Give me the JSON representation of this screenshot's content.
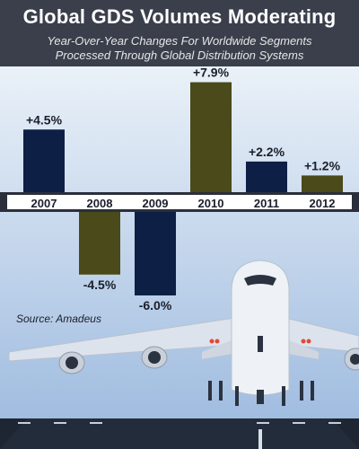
{
  "header": {
    "title": "Global GDS Volumes Moderating",
    "subtitle_line1": "Year-Over-Year Changes For Worldwide Segments",
    "subtitle_line2": "Processed Through Global Distribution Systems"
  },
  "source": "Source: Amadeus",
  "colors": {
    "positive_bar": "#0e1f45",
    "negative_bar": "#0e1f45",
    "highlight_bar": "#4a4a1a",
    "sky_top": "#eaf1f8",
    "sky_bottom": "#9ab8de",
    "axis_band": "#2a2f3b",
    "label_text": "#ffffff"
  },
  "chart_data": {
    "type": "bar",
    "categories": [
      "2007",
      "2008",
      "2009",
      "2010",
      "2011",
      "2012"
    ],
    "values": [
      4.5,
      -4.5,
      -6.0,
      7.9,
      2.2,
      1.2
    ],
    "value_labels": [
      "+4.5%",
      "-4.5%",
      "-6.0%",
      "+7.9%",
      "+2.2%",
      "+1.2%"
    ],
    "bar_styles": [
      "navy",
      "olive",
      "navy",
      "olive",
      "navy",
      "olive"
    ],
    "ylim": [
      -6.0,
      7.9
    ],
    "grid": false,
    "legend": "none"
  }
}
